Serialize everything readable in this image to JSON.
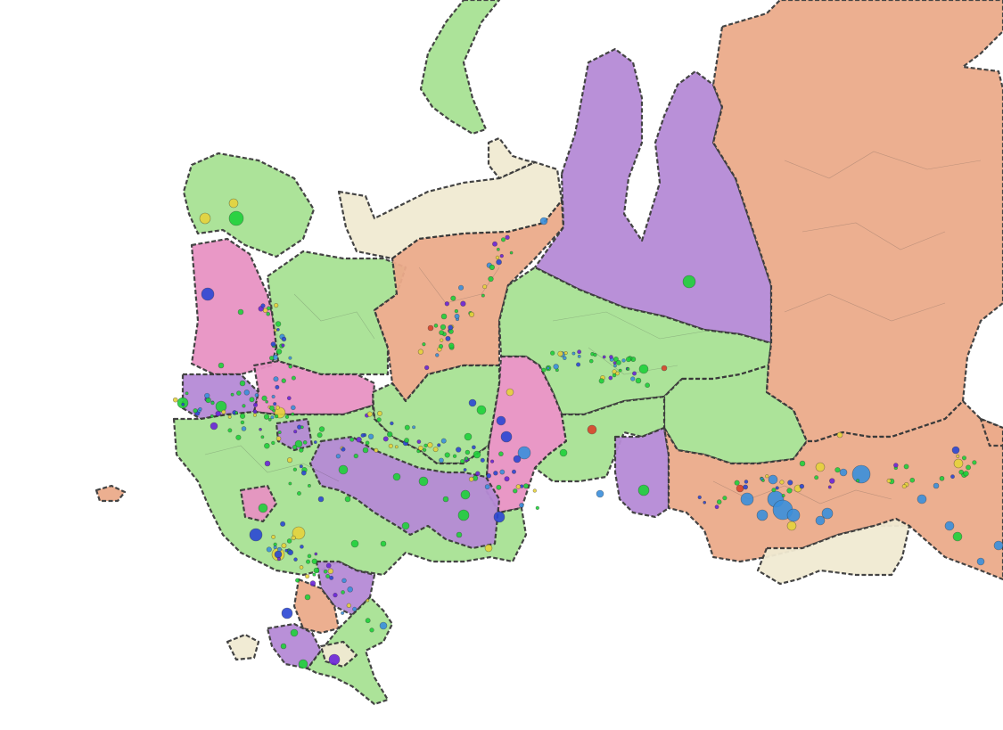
{
  "colors": {
    "green": "#a8e294",
    "purple": "#b68bd6",
    "orange": "#ecab8b",
    "pink": "#e893c3",
    "beige": "#f1ead2",
    "city_green": "#1fd13a",
    "city_blue": "#2b47d4",
    "city_lightblue": "#3a8fdc",
    "city_yellow": "#e6d33c",
    "city_red": "#d9432b",
    "city_violet": "#6a24d8"
  },
  "icons": {
    "city_marker": "circle-marker-icon"
  }
}
